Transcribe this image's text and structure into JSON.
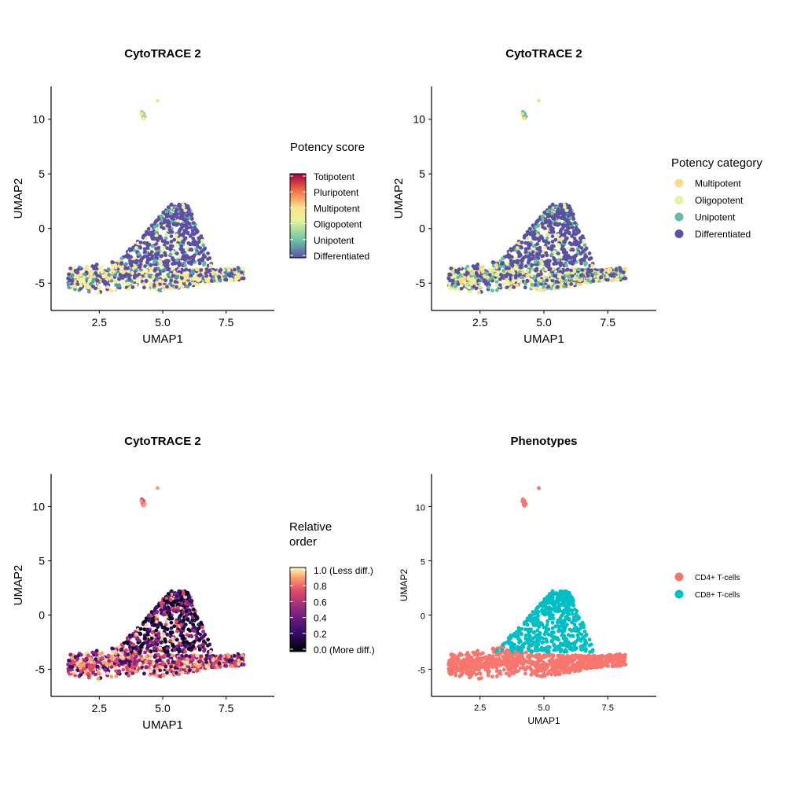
{
  "chart_data": [
    {
      "id": "panel1",
      "type": "scatter",
      "title": "CytoTRACE 2",
      "xlabel": "UMAP1",
      "ylabel": "UMAP2",
      "xlim": [
        0.6,
        9.4
      ],
      "ylim": [
        -7.5,
        13
      ],
      "xticks": [
        2.5,
        5.0,
        7.5
      ],
      "xtick_labels": [
        "2.5",
        "5.0",
        "7.5"
      ],
      "yticks": [
        -5,
        0,
        5,
        10
      ],
      "ytick_labels": [
        "-5",
        "0",
        "5",
        "10"
      ],
      "color_by": "potency_score",
      "legend": {
        "type": "colorbar",
        "title": "Potency score",
        "labels": [
          "Totipotent",
          "Pluripotent",
          "Multipotent",
          "Oligopotent",
          "Unipotent",
          "Differentiated"
        ],
        "gradient": [
          "#5e4fa2",
          "#66c2a5",
          "#e6f598",
          "#fee08b",
          "#f46d43",
          "#9e0142"
        ]
      }
    },
    {
      "id": "panel2",
      "type": "scatter",
      "title": "CytoTRACE 2",
      "xlabel": "UMAP1",
      "ylabel": "UMAP2",
      "xlim": [
        0.6,
        9.4
      ],
      "ylim": [
        -7.5,
        13
      ],
      "xticks": [
        2.5,
        5.0,
        7.5
      ],
      "xtick_labels": [
        "2.5",
        "5.0",
        "7.5"
      ],
      "yticks": [
        -5,
        0,
        5,
        10
      ],
      "ytick_labels": [
        "-5",
        "0",
        "5",
        "10"
      ],
      "color_by": "potency_category",
      "legend": {
        "type": "categorical",
        "title": "Potency category",
        "items": [
          {
            "label": "Multipotent",
            "color": "#f9dc87"
          },
          {
            "label": "Oligopotent",
            "color": "#e7f3a0"
          },
          {
            "label": "Unipotent",
            "color": "#61bf9b"
          },
          {
            "label": "Differentiated",
            "color": "#5b51a2"
          }
        ]
      }
    },
    {
      "id": "panel3",
      "type": "scatter",
      "title": "CytoTRACE 2",
      "xlabel": "UMAP1",
      "ylabel": "UMAP2",
      "xlim": [
        0.6,
        9.4
      ],
      "ylim": [
        -7.5,
        13
      ],
      "xticks": [
        2.5,
        5.0,
        7.5
      ],
      "xtick_labels": [
        "2.5",
        "5.0",
        "7.5"
      ],
      "yticks": [
        -5,
        0,
        5,
        10
      ],
      "ytick_labels": [
        "-5",
        "0",
        "5",
        "10"
      ],
      "color_by": "relative_order",
      "legend": {
        "type": "colorbar",
        "title_lines": [
          "Relative",
          "order"
        ],
        "labels": [
          "1.0 (Less diff.)",
          "0.8",
          "0.6",
          "0.4",
          "0.2",
          "0.0 (More diff.)"
        ],
        "gradient": [
          "#000004",
          "#3b0f70",
          "#8c2981",
          "#de4968",
          "#fe9f6d",
          "#fcfdbf"
        ]
      }
    },
    {
      "id": "panel4",
      "type": "scatter",
      "title": "Phenotypes",
      "xlabel": "UMAP1",
      "ylabel": "UMAP2",
      "xlim": [
        0.6,
        9.4
      ],
      "ylim": [
        -7.5,
        13
      ],
      "xticks": [
        2.5,
        5.0,
        7.5
      ],
      "xtick_labels": [
        "2.5",
        "5.0",
        "7.5"
      ],
      "yticks": [
        -5,
        0,
        5,
        10
      ],
      "ytick_labels": [
        "-5",
        "0",
        "5",
        "10"
      ],
      "color_by": "phenotype",
      "legend": {
        "type": "categorical",
        "title": "",
        "items": [
          {
            "label": "CD4+ T-cells",
            "color": "#f8766d"
          },
          {
            "label": "CD8+ T-cells",
            "color": "#00bfc4"
          }
        ]
      }
    }
  ],
  "clusters": {
    "main_base": {
      "x_range": [
        1.2,
        8.3
      ],
      "y_center": -4.8,
      "y_spread": 1.1,
      "phenotype": "CD4+ T-cells"
    },
    "main_top": {
      "x_range": [
        3.8,
        6.9
      ],
      "y_range": [
        -3.5,
        2.2
      ],
      "peak_x": 5.3,
      "phenotype": "CD8+ T-cells"
    },
    "outlier_group": {
      "x": 4.25,
      "y": 10.3,
      "phenotype": "CD4+ T-cells"
    },
    "outlier_single": {
      "x": 4.8,
      "y": 11.7,
      "phenotype": "CD4+ T-cells"
    }
  }
}
